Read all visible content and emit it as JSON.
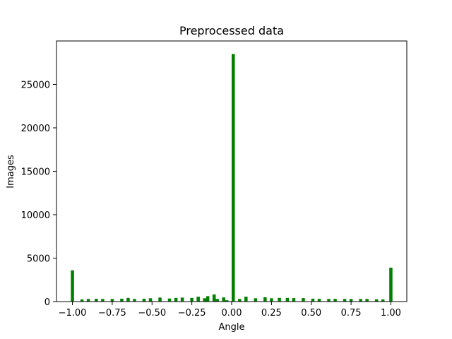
{
  "chart_data": {
    "type": "bar",
    "title": "Preprocessed data",
    "xlabel": "Angle",
    "ylabel": "Images",
    "xlim": [
      -1.1,
      1.1
    ],
    "ylim": [
      0,
      30000
    ],
    "bar_color": "#007f00",
    "x_ticks": [
      -1.0,
      -0.75,
      -0.5,
      -0.25,
      0.0,
      0.25,
      0.5,
      0.75,
      1.0
    ],
    "x_tick_labels": [
      "−1.00",
      "−0.75",
      "−0.50",
      "−0.25",
      "0.00",
      "0.25",
      "0.50",
      "0.75",
      "1.00"
    ],
    "y_ticks": [
      0,
      5000,
      10000,
      15000,
      20000,
      25000
    ],
    "y_tick_labels": [
      "0",
      "5000",
      "10000",
      "15000",
      "20000",
      "25000"
    ],
    "bin_width": 0.02,
    "bins": [
      {
        "x": -1.0,
        "y": 3600
      },
      {
        "x": -0.94,
        "y": 250
      },
      {
        "x": -0.9,
        "y": 300
      },
      {
        "x": -0.85,
        "y": 320
      },
      {
        "x": -0.81,
        "y": 300
      },
      {
        "x": -0.75,
        "y": 300
      },
      {
        "x": -0.69,
        "y": 330
      },
      {
        "x": -0.65,
        "y": 420
      },
      {
        "x": -0.61,
        "y": 300
      },
      {
        "x": -0.55,
        "y": 330
      },
      {
        "x": -0.51,
        "y": 380
      },
      {
        "x": -0.45,
        "y": 460
      },
      {
        "x": -0.39,
        "y": 350
      },
      {
        "x": -0.35,
        "y": 420
      },
      {
        "x": -0.31,
        "y": 460
      },
      {
        "x": -0.25,
        "y": 420
      },
      {
        "x": -0.21,
        "y": 560
      },
      {
        "x": -0.17,
        "y": 380
      },
      {
        "x": -0.15,
        "y": 620
      },
      {
        "x": -0.11,
        "y": 820
      },
      {
        "x": -0.09,
        "y": 300
      },
      {
        "x": -0.05,
        "y": 480
      },
      {
        "x": -0.03,
        "y": 150
      },
      {
        "x": 0.01,
        "y": 28500
      },
      {
        "x": 0.05,
        "y": 300
      },
      {
        "x": 0.09,
        "y": 560
      },
      {
        "x": 0.15,
        "y": 380
      },
      {
        "x": 0.21,
        "y": 500
      },
      {
        "x": 0.25,
        "y": 380
      },
      {
        "x": 0.3,
        "y": 420
      },
      {
        "x": 0.35,
        "y": 420
      },
      {
        "x": 0.39,
        "y": 400
      },
      {
        "x": 0.45,
        "y": 400
      },
      {
        "x": 0.51,
        "y": 330
      },
      {
        "x": 0.55,
        "y": 310
      },
      {
        "x": 0.61,
        "y": 300
      },
      {
        "x": 0.65,
        "y": 310
      },
      {
        "x": 0.71,
        "y": 300
      },
      {
        "x": 0.75,
        "y": 300
      },
      {
        "x": 0.81,
        "y": 300
      },
      {
        "x": 0.85,
        "y": 300
      },
      {
        "x": 0.91,
        "y": 260
      },
      {
        "x": 0.95,
        "y": 250
      },
      {
        "x": 1.0,
        "y": 3900
      }
    ]
  }
}
